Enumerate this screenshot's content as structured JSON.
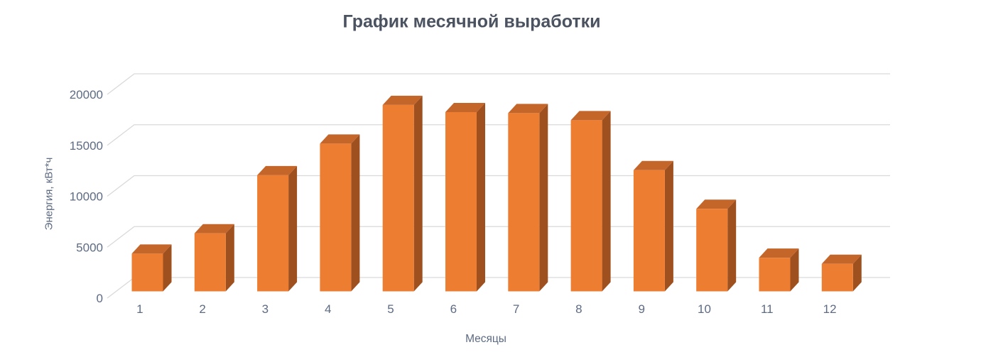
{
  "title": "График месячной выработки",
  "chart_data": {
    "type": "bar",
    "style": "3d-column",
    "title": "График месячной выработки",
    "xlabel": "Месяцы",
    "ylabel": "Энергия, кВт*ч",
    "categories": [
      "1",
      "2",
      "3",
      "4",
      "5",
      "6",
      "7",
      "8",
      "9",
      "10",
      "11",
      "12"
    ],
    "values": [
      3700,
      5700,
      11400,
      14500,
      18300,
      17600,
      17500,
      16800,
      11900,
      8100,
      3300,
      2700
    ],
    "ylim": [
      0,
      20000
    ],
    "ytick_interval": 5000,
    "yticks": [
      "0",
      "5000",
      "10000",
      "15000",
      "20000"
    ],
    "grid": true,
    "legend": false,
    "colors": {
      "bar_front": "#ED7D31",
      "bar_top": "#C4652A",
      "bar_side": "#9E501F",
      "gridline": "#D9D9D9",
      "title_color": "#4b5260",
      "tick_label_color": "#5d6b84",
      "axis_title_color": "#5c6a82",
      "background": "#FFFFFF"
    }
  }
}
